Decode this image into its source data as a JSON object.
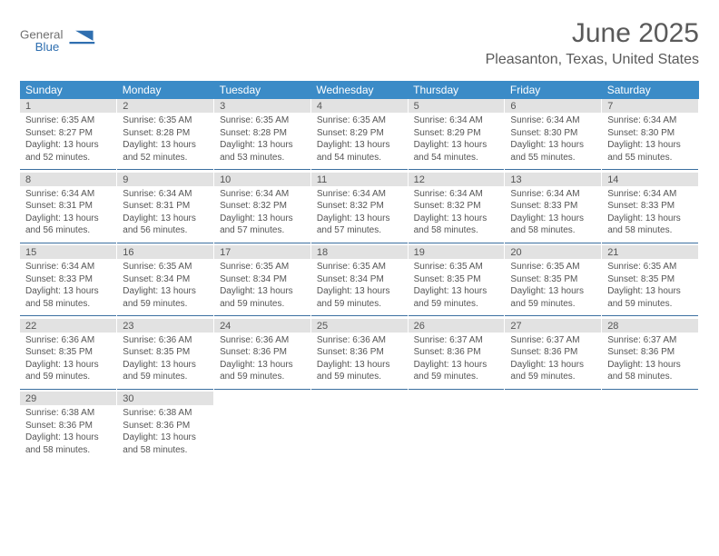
{
  "logo": {
    "word1": "General",
    "word2": "Blue"
  },
  "title": "June 2025",
  "location": "Pleasanton, Texas, United States",
  "colors": {
    "header_bg": "#3b8bc7",
    "header_fg": "#ffffff",
    "daynum_bg": "#e2e2e2",
    "sep": "#3b6fa0",
    "text": "#555555",
    "logo_gray": "#707070",
    "logo_blue": "#2f6fb0"
  },
  "weekdays": [
    "Sunday",
    "Monday",
    "Tuesday",
    "Wednesday",
    "Thursday",
    "Friday",
    "Saturday"
  ],
  "weeks": [
    [
      {
        "n": "1",
        "sr": "6:35 AM",
        "ss": "8:27 PM",
        "dh": "13",
        "dm": "52"
      },
      {
        "n": "2",
        "sr": "6:35 AM",
        "ss": "8:28 PM",
        "dh": "13",
        "dm": "52"
      },
      {
        "n": "3",
        "sr": "6:35 AM",
        "ss": "8:28 PM",
        "dh": "13",
        "dm": "53"
      },
      {
        "n": "4",
        "sr": "6:35 AM",
        "ss": "8:29 PM",
        "dh": "13",
        "dm": "54"
      },
      {
        "n": "5",
        "sr": "6:34 AM",
        "ss": "8:29 PM",
        "dh": "13",
        "dm": "54"
      },
      {
        "n": "6",
        "sr": "6:34 AM",
        "ss": "8:30 PM",
        "dh": "13",
        "dm": "55"
      },
      {
        "n": "7",
        "sr": "6:34 AM",
        "ss": "8:30 PM",
        "dh": "13",
        "dm": "55"
      }
    ],
    [
      {
        "n": "8",
        "sr": "6:34 AM",
        "ss": "8:31 PM",
        "dh": "13",
        "dm": "56"
      },
      {
        "n": "9",
        "sr": "6:34 AM",
        "ss": "8:31 PM",
        "dh": "13",
        "dm": "56"
      },
      {
        "n": "10",
        "sr": "6:34 AM",
        "ss": "8:32 PM",
        "dh": "13",
        "dm": "57"
      },
      {
        "n": "11",
        "sr": "6:34 AM",
        "ss": "8:32 PM",
        "dh": "13",
        "dm": "57"
      },
      {
        "n": "12",
        "sr": "6:34 AM",
        "ss": "8:32 PM",
        "dh": "13",
        "dm": "58"
      },
      {
        "n": "13",
        "sr": "6:34 AM",
        "ss": "8:33 PM",
        "dh": "13",
        "dm": "58"
      },
      {
        "n": "14",
        "sr": "6:34 AM",
        "ss": "8:33 PM",
        "dh": "13",
        "dm": "58"
      }
    ],
    [
      {
        "n": "15",
        "sr": "6:34 AM",
        "ss": "8:33 PM",
        "dh": "13",
        "dm": "58"
      },
      {
        "n": "16",
        "sr": "6:35 AM",
        "ss": "8:34 PM",
        "dh": "13",
        "dm": "59"
      },
      {
        "n": "17",
        "sr": "6:35 AM",
        "ss": "8:34 PM",
        "dh": "13",
        "dm": "59"
      },
      {
        "n": "18",
        "sr": "6:35 AM",
        "ss": "8:34 PM",
        "dh": "13",
        "dm": "59"
      },
      {
        "n": "19",
        "sr": "6:35 AM",
        "ss": "8:35 PM",
        "dh": "13",
        "dm": "59"
      },
      {
        "n": "20",
        "sr": "6:35 AM",
        "ss": "8:35 PM",
        "dh": "13",
        "dm": "59"
      },
      {
        "n": "21",
        "sr": "6:35 AM",
        "ss": "8:35 PM",
        "dh": "13",
        "dm": "59"
      }
    ],
    [
      {
        "n": "22",
        "sr": "6:36 AM",
        "ss": "8:35 PM",
        "dh": "13",
        "dm": "59"
      },
      {
        "n": "23",
        "sr": "6:36 AM",
        "ss": "8:35 PM",
        "dh": "13",
        "dm": "59"
      },
      {
        "n": "24",
        "sr": "6:36 AM",
        "ss": "8:36 PM",
        "dh": "13",
        "dm": "59"
      },
      {
        "n": "25",
        "sr": "6:36 AM",
        "ss": "8:36 PM",
        "dh": "13",
        "dm": "59"
      },
      {
        "n": "26",
        "sr": "6:37 AM",
        "ss": "8:36 PM",
        "dh": "13",
        "dm": "59"
      },
      {
        "n": "27",
        "sr": "6:37 AM",
        "ss": "8:36 PM",
        "dh": "13",
        "dm": "59"
      },
      {
        "n": "28",
        "sr": "6:37 AM",
        "ss": "8:36 PM",
        "dh": "13",
        "dm": "58"
      }
    ],
    [
      {
        "n": "29",
        "sr": "6:38 AM",
        "ss": "8:36 PM",
        "dh": "13",
        "dm": "58"
      },
      {
        "n": "30",
        "sr": "6:38 AM",
        "ss": "8:36 PM",
        "dh": "13",
        "dm": "58"
      },
      null,
      null,
      null,
      null,
      null
    ]
  ],
  "labels": {
    "sunrise": "Sunrise:",
    "sunset": "Sunset:",
    "daylight_prefix": "Daylight:",
    "hours_word": "hours",
    "and_word": "and",
    "minutes_suffix": "minutes."
  }
}
